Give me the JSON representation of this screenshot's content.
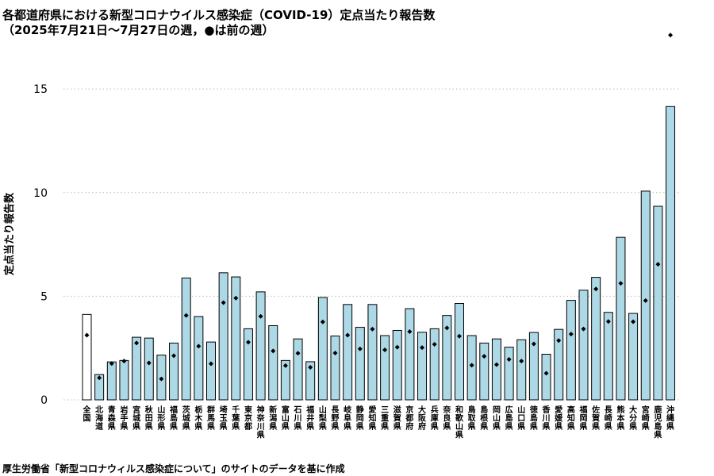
{
  "title": "各都道府県における新型コロナウイルス感染症（COVID-19）定点当たり報告数",
  "subtitle": "（2025年7月21日～7月27日の週，●は前の週）",
  "source": "厚生労働省「新型コロナウィルス感染症について」のサイトのデータを基に作成",
  "colors": {
    "bar": "#add8e6",
    "national_bar": "#ffffff",
    "stroke": "#000000",
    "grid": "#bbbbbb"
  },
  "chart_data": {
    "type": "bar",
    "title": "各都道府県における新型コロナウイルス感染症（COVID-19）定点当たり報告数",
    "subtitle": "（2025年7月21日～7月27日の週，●は前の週）",
    "xlabel": "",
    "ylabel": "定点当たり報告数",
    "ylim": [
      0,
      16
    ],
    "yticks": [
      0,
      5,
      10,
      15
    ],
    "grid": "horizontal dotted",
    "categories": [
      "全国",
      "北海道",
      "青森県",
      "岩手県",
      "宮城県",
      "秋田県",
      "山形県",
      "福島県",
      "茨城県",
      "栃木県",
      "群馬県",
      "埼玉県",
      "千葉県",
      "東京都",
      "神奈川県",
      "新潟県",
      "富山県",
      "石川県",
      "福井県",
      "山梨県",
      "長野県",
      "岐阜県",
      "静岡県",
      "愛知県",
      "三重県",
      "滋賀県",
      "京都府",
      "大阪府",
      "兵庫県",
      "奈良県",
      "和歌山県",
      "鳥取県",
      "島根県",
      "岡山県",
      "広島県",
      "山口県",
      "徳島県",
      "香川県",
      "愛媛県",
      "高知県",
      "福岡県",
      "佐賀県",
      "長崎県",
      "熊本県",
      "大分県",
      "宮崎県",
      "鹿児島県",
      "沖縄県"
    ],
    "series": [
      {
        "values": [
          4.12,
          1.22,
          1.83,
          1.9,
          3.02,
          2.98,
          2.16,
          2.74,
          5.88,
          4.02,
          2.79,
          6.13,
          5.93,
          3.43,
          5.21,
          3.58,
          1.9,
          2.94,
          1.84,
          4.94,
          3.08,
          4.6,
          3.5,
          4.6,
          3.1,
          3.35,
          4.4,
          3.26,
          3.43,
          4.07,
          4.65,
          3.1,
          2.74,
          2.94,
          2.54,
          2.9,
          3.25,
          2.2,
          3.4,
          4.8,
          5.29,
          5.91,
          4.22,
          7.84,
          4.17,
          10.07,
          9.34,
          14.15
        ]
      },
      {
        "marker": "●",
        "values": [
          3.12,
          1.06,
          1.75,
          1.87,
          2.74,
          1.78,
          1.01,
          2.13,
          4.07,
          2.59,
          1.74,
          4.69,
          4.91,
          2.78,
          4.03,
          2.36,
          1.65,
          2.25,
          1.57,
          3.76,
          2.26,
          3.12,
          2.46,
          3.41,
          2.41,
          2.54,
          3.29,
          2.52,
          2.68,
          3.47,
          3.07,
          1.67,
          2.1,
          1.7,
          1.95,
          1.87,
          2.7,
          1.28,
          2.86,
          3.17,
          3.42,
          5.35,
          3.78,
          5.62,
          3.77,
          4.79,
          6.54,
          17.6
        ]
      }
    ]
  }
}
